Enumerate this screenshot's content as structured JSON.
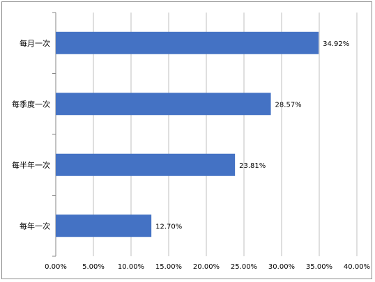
{
  "chart_data": {
    "type": "bar",
    "orientation": "horizontal",
    "categories": [
      "每月一次",
      "每季度一次",
      "每半年一次",
      "每年一次"
    ],
    "values": [
      34.92,
      28.57,
      23.81,
      12.7
    ],
    "data_labels": [
      "34.92%",
      "28.57%",
      "23.81%",
      "12.70%"
    ],
    "xlim": [
      0,
      40
    ],
    "x_ticks": [
      0,
      5,
      10,
      15,
      20,
      25,
      30,
      35,
      40
    ],
    "x_tick_labels": [
      "0.00%",
      "5.00%",
      "10.00%",
      "15.00%",
      "20.00%",
      "25.00%",
      "30.00%",
      "35.00%",
      "40.00%"
    ],
    "title": "",
    "xlabel": "",
    "ylabel": "",
    "grid": "vertical",
    "legend": "none",
    "bar_color": "#4472C4",
    "grid_color": "#bfbfbf",
    "axis_color": "#868686"
  }
}
